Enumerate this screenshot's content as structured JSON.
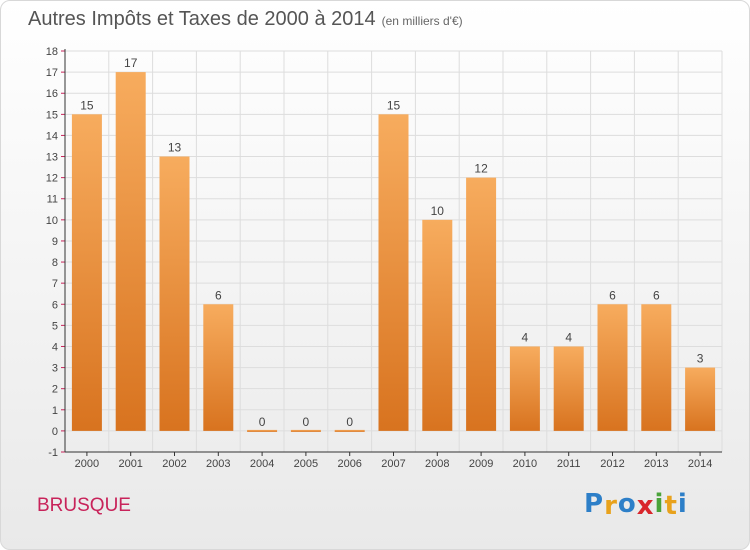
{
  "header": {
    "title": "Autres Impôts et Taxes de 2000 à 2014",
    "subtitle": "(en milliers d'€)"
  },
  "footer": {
    "place": "BRUSQUE",
    "logo_letters": [
      "P",
      "r",
      "o",
      "x",
      "i",
      "t",
      "i"
    ],
    "logo_colors": [
      "#2d7fc8",
      "#e8a21c",
      "#2d7fc8",
      "#d9262c",
      "#4aa33a",
      "#e8a21c",
      "#2d7fc8"
    ]
  },
  "colors": {
    "bar_light": "#f7ac5e",
    "bar_dark": "#d8731f",
    "grid": "#dddddd",
    "axis": "#333333",
    "tick": "#c8235a",
    "text": "#444444"
  },
  "chart_data": {
    "type": "bar",
    "categories": [
      "2000",
      "2001",
      "2002",
      "2003",
      "2004",
      "2005",
      "2006",
      "2007",
      "2008",
      "2009",
      "2010",
      "2011",
      "2012",
      "2013",
      "2014"
    ],
    "values": [
      15,
      17,
      13,
      6,
      0,
      0,
      0,
      15,
      10,
      12,
      4,
      4,
      6,
      6,
      3
    ],
    "data_labels": [
      "15",
      "17",
      "13",
      "6",
      "0",
      "0",
      "0",
      "15",
      "10",
      "12",
      "4",
      "4",
      "6",
      "6",
      "3"
    ],
    "yticks": [
      "-1",
      "0",
      "1",
      "2",
      "3",
      "4",
      "5",
      "6",
      "7",
      "8",
      "9",
      "10",
      "11",
      "12",
      "13",
      "14",
      "15",
      "16",
      "17",
      "18"
    ],
    "ylim": [
      -1,
      18
    ],
    "grid": true
  }
}
